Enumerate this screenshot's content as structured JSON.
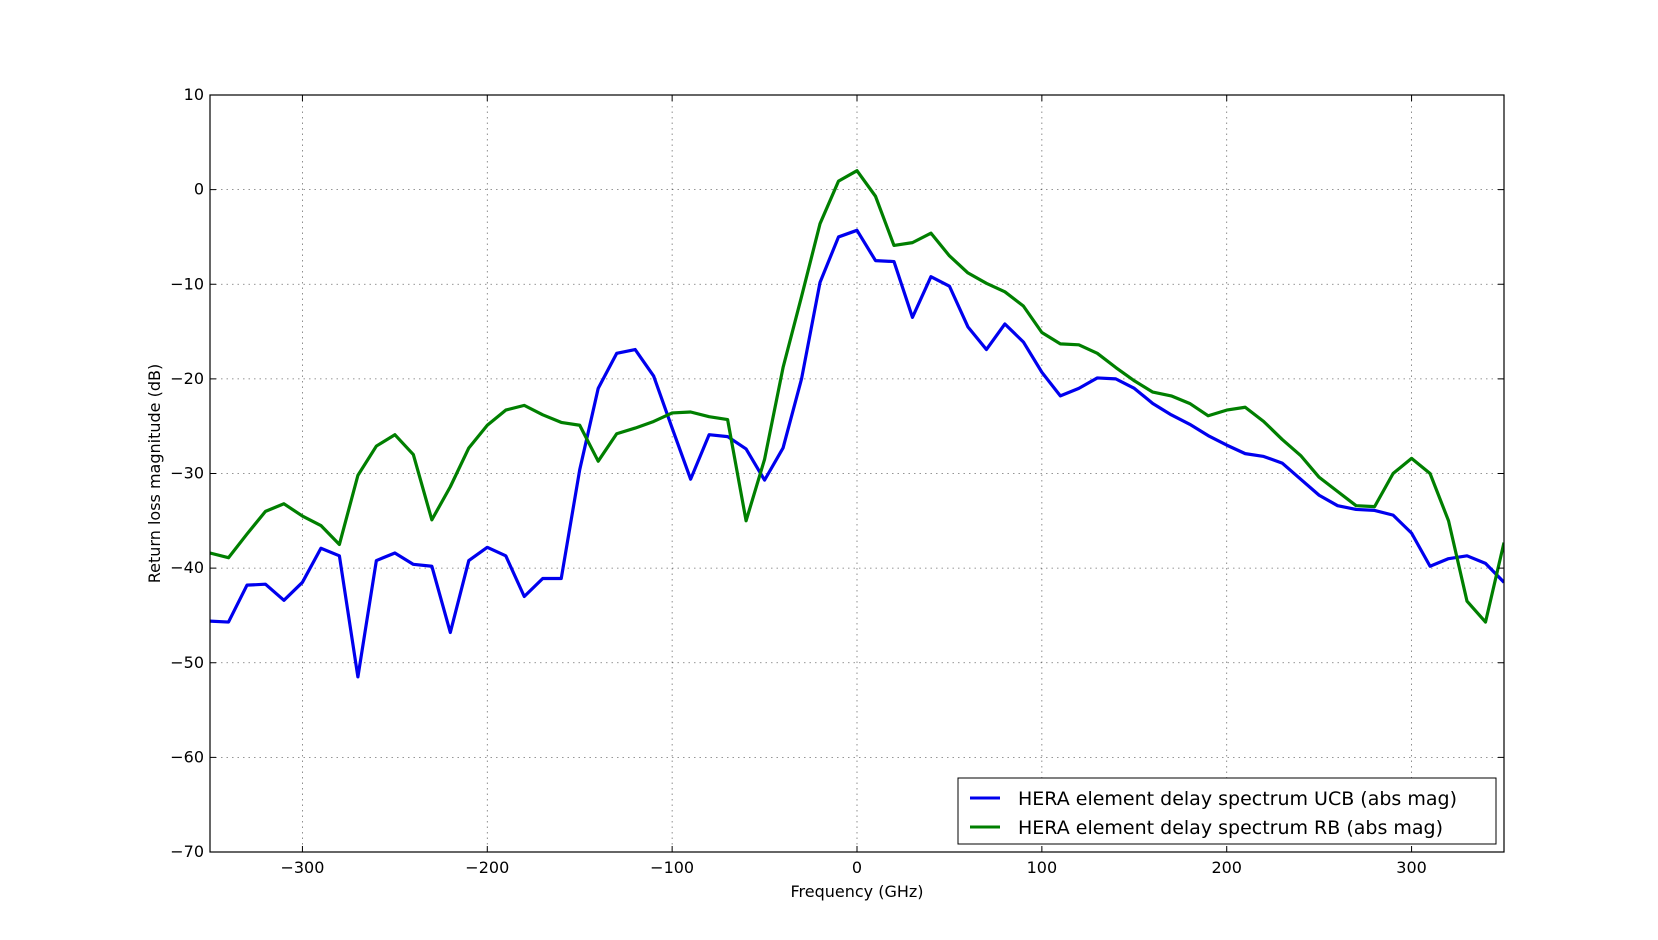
{
  "chart_data": {
    "type": "line",
    "title": "",
    "xlabel": "Frequency (GHz)",
    "ylabel": "Return loss magnitude (dB)",
    "xlim": [
      -350,
      350
    ],
    "ylim": [
      -70,
      10
    ],
    "xticks": [
      -300,
      -200,
      -100,
      0,
      100,
      200,
      300
    ],
    "yticks": [
      -70,
      -60,
      -50,
      -40,
      -30,
      -20,
      -10,
      0,
      10
    ],
    "grid": true,
    "legend": "bottom-right",
    "x": [
      -350,
      -340,
      -330,
      -320,
      -310,
      -300,
      -290,
      -280,
      -270,
      -260,
      -250,
      -240,
      -230,
      -220,
      -210,
      -200,
      -190,
      -180,
      -170,
      -160,
      -150,
      -140,
      -130,
      -120,
      -110,
      -100,
      -90,
      -80,
      -70,
      -60,
      -50,
      -40,
      -30,
      -20,
      -10,
      0,
      10,
      20,
      30,
      40,
      50,
      60,
      70,
      80,
      90,
      100,
      110,
      120,
      130,
      140,
      150,
      160,
      170,
      180,
      190,
      200,
      210,
      220,
      230,
      240,
      250,
      260,
      270,
      280,
      290,
      300,
      310,
      320,
      330,
      340,
      350
    ],
    "series": [
      {
        "name": "HERA element delay spectrum UCB (abs mag)",
        "color": "#0000ee",
        "values": [
          -45.6,
          -45.7,
          -41.8,
          -41.7,
          -43.4,
          -41.5,
          -37.9,
          -38.7,
          -51.5,
          -39.2,
          -38.4,
          -39.6,
          -39.8,
          -46.8,
          -39.2,
          -37.8,
          -38.7,
          -43.0,
          -41.1,
          -41.1,
          -29.6,
          -21.0,
          -17.3,
          -16.9,
          -19.7,
          -25.2,
          -30.6,
          -25.9,
          -26.1,
          -27.4,
          -30.7,
          -27.3,
          -20.0,
          -9.8,
          -5.0,
          -4.3,
          -7.5,
          -7.6,
          -13.5,
          -9.2,
          -10.2,
          -14.5,
          -16.9,
          -14.2,
          -16.1,
          -19.3,
          -21.8,
          -21.0,
          -19.9,
          -20.0,
          -21.0,
          -22.6,
          -23.8,
          -24.8,
          -26.0,
          -27.0,
          -27.9,
          -28.2,
          -28.9,
          -30.6,
          -32.3,
          -33.4,
          -33.8,
          -33.9,
          -34.4,
          -36.3,
          -39.8,
          -39.0,
          -38.7,
          -39.5,
          -41.5
        ]
      },
      {
        "name": "HERA element delay spectrum RB (abs mag)",
        "color": "#007f00",
        "values": [
          -38.4,
          -38.9,
          -36.4,
          -34.0,
          -33.2,
          -34.5,
          -35.5,
          -37.5,
          -30.2,
          -27.1,
          -25.9,
          -28.0,
          -34.9,
          -31.4,
          -27.3,
          -24.9,
          -23.3,
          -22.8,
          -23.8,
          -24.6,
          -24.9,
          -28.7,
          -25.8,
          -25.2,
          -24.5,
          -23.6,
          -23.5,
          -24.0,
          -24.3,
          -35.0,
          -28.5,
          -18.8,
          -11.3,
          -3.6,
          0.9,
          2.0,
          -0.7,
          -5.9,
          -5.6,
          -4.6,
          -7.0,
          -8.8,
          -9.9,
          -10.8,
          -12.3,
          -15.1,
          -16.3,
          -16.4,
          -17.3,
          -18.8,
          -20.2,
          -21.4,
          -21.8,
          -22.6,
          -23.9,
          -23.3,
          -23.0,
          -24.5,
          -26.4,
          -28.1,
          -30.4,
          -31.9,
          -33.4,
          -33.5,
          -30.0,
          -28.4,
          -30.0,
          -35.0,
          -43.5,
          -45.7,
          -37.3
        ]
      }
    ]
  }
}
